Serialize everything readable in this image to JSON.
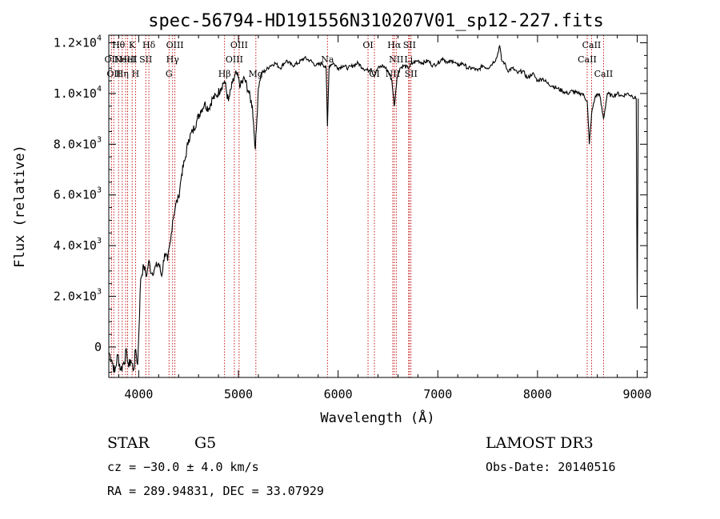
{
  "chart_data": {
    "type": "line",
    "title": "spec-56794-HD191556N310207V01_sp12-227.fits",
    "xlabel": "Wavelength (Å)",
    "ylabel": "Flux (relative)",
    "xlim": [
      3700,
      9100
    ],
    "ylim": [
      -1200,
      12300
    ],
    "x_ticks": [
      {
        "value": 4000,
        "label": "4000"
      },
      {
        "value": 5000,
        "label": "5000"
      },
      {
        "value": 6000,
        "label": "6000"
      },
      {
        "value": 7000,
        "label": "7000"
      },
      {
        "value": 8000,
        "label": "8000"
      },
      {
        "value": 9000,
        "label": "9000"
      }
    ],
    "y_ticks": [
      {
        "value": 0,
        "label": "0",
        "mant": "",
        "exp": ""
      },
      {
        "value": 2000,
        "label": "",
        "mant": "2.0×10",
        "exp": "3"
      },
      {
        "value": 4000,
        "label": "",
        "mant": "4.0×10",
        "exp": "3"
      },
      {
        "value": 6000,
        "label": "",
        "mant": "6.0×10",
        "exp": "3"
      },
      {
        "value": 8000,
        "label": "",
        "mant": "8.0×10",
        "exp": "3"
      },
      {
        "value": 10000,
        "label": "",
        "mant": "1.0×10",
        "exp": "4"
      },
      {
        "value": 12000,
        "label": "",
        "mant": "1.2×10",
        "exp": "4"
      }
    ],
    "series": [
      {
        "x": [
          3700,
          3730,
          3760,
          3790,
          3820,
          3850,
          3880,
          3900,
          3920,
          3950,
          3970,
          3990,
          4020,
          4050,
          4080,
          4100,
          4130,
          4160,
          4200,
          4230,
          4260,
          4290,
          4320,
          4340,
          4370,
          4400,
          4430,
          4470,
          4500,
          4540,
          4580,
          4620,
          4660,
          4700,
          4740,
          4780,
          4820,
          4860,
          4900,
          4940,
          4980,
          5020,
          5060,
          5100,
          5140,
          5170,
          5185,
          5200,
          5230,
          5270,
          5320,
          5370,
          5420,
          5480,
          5540,
          5600,
          5660,
          5720,
          5780,
          5840,
          5880,
          5893,
          5910,
          5950,
          6000,
          6050,
          6100,
          6150,
          6200,
          6250,
          6300,
          6330,
          6360,
          6400,
          6450,
          6500,
          6540,
          6563,
          6590,
          6620,
          6660,
          6700,
          6750,
          6800,
          6850,
          6900,
          6950,
          7000,
          7050,
          7100,
          7150,
          7200,
          7250,
          7300,
          7350,
          7400,
          7450,
          7500,
          7550,
          7590,
          7620,
          7640,
          7670,
          7700,
          7750,
          7800,
          7850,
          7900,
          7950,
          8000,
          8050,
          8100,
          8150,
          8200,
          8250,
          8300,
          8350,
          8400,
          8450,
          8498,
          8520,
          8542,
          8580,
          8620,
          8662,
          8700,
          8750,
          8800,
          8850,
          8900,
          8950,
          8990,
          9000,
          9010
        ],
        "y": [
          -200,
          -500,
          -1000,
          -300,
          -900,
          -600,
          -200,
          -800,
          -500,
          -900,
          -100,
          -700,
          2700,
          3200,
          2800,
          3400,
          2900,
          3100,
          3300,
          2800,
          3700,
          3400,
          4200,
          5000,
          5600,
          5900,
          6800,
          7500,
          8200,
          8500,
          8900,
          9300,
          9600,
          9400,
          9800,
          9900,
          10200,
          10500,
          9700,
          10400,
          10800,
          10300,
          10600,
          10100,
          9500,
          7800,
          9000,
          10200,
          10800,
          10900,
          11100,
          11200,
          11000,
          11300,
          11100,
          11200,
          11400,
          11300,
          11100,
          11200,
          11000,
          8700,
          11100,
          11200,
          11000,
          11100,
          11000,
          11100,
          11200,
          11000,
          10900,
          11000,
          10700,
          11000,
          11100,
          10900,
          10500,
          9500,
          10600,
          11000,
          11100,
          11000,
          11200,
          11300,
          11200,
          11300,
          11100,
          11200,
          11400,
          11200,
          11300,
          11100,
          11200,
          11000,
          11000,
          10900,
          11100,
          11000,
          11200,
          11400,
          11900,
          11300,
          11200,
          10900,
          11000,
          10800,
          10900,
          10600,
          10800,
          10500,
          10600,
          10400,
          10300,
          10200,
          10100,
          10000,
          10100,
          10000,
          10000,
          9700,
          8000,
          9200,
          9900,
          10000,
          9000,
          10000,
          9900,
          10000,
          9900,
          10000,
          9900,
          9800,
          1500,
          9800
        ]
      }
    ],
    "spectral_lines": [
      {
        "x": 3727,
        "label": "OII",
        "row": 1
      },
      {
        "x": 3750,
        "label": "OII",
        "row": 2
      },
      {
        "x": 3798,
        "label": "Hθ",
        "row": 0
      },
      {
        "x": 3835,
        "label": "Hη",
        "row": 2
      },
      {
        "x": 3869,
        "label": "NeIII",
        "row": 1
      },
      {
        "x": 3889,
        "label": "HeI",
        "row": 1
      },
      {
        "x": 3934,
        "label": "K",
        "row": 0
      },
      {
        "x": 3968,
        "label": "H",
        "row": 2
      },
      {
        "x": 4071,
        "label": "SII",
        "row": 1
      },
      {
        "x": 4102,
        "label": "Hδ",
        "row": 0
      },
      {
        "x": 4304,
        "label": "G",
        "row": 2
      },
      {
        "x": 4340,
        "label": "Hγ",
        "row": 1
      },
      {
        "x": 4363,
        "label": "OIII",
        "row": 0
      },
      {
        "x": 4861,
        "label": "Hβ",
        "row": 2
      },
      {
        "x": 4959,
        "label": "OIII",
        "row": 1
      },
      {
        "x": 5007,
        "label": "OIII",
        "row": 0
      },
      {
        "x": 5175,
        "label": "Mg",
        "row": 2
      },
      {
        "x": 5893,
        "label": "Na",
        "row": 1
      },
      {
        "x": 6300,
        "label": "OI",
        "row": 0
      },
      {
        "x": 6364,
        "label": "OI",
        "row": 2
      },
      {
        "x": 6548,
        "label": "NII",
        "row": 2
      },
      {
        "x": 6563,
        "label": "Hα",
        "row": 0
      },
      {
        "x": 6583,
        "label": "NII",
        "row": 1
      },
      {
        "x": 6707,
        "label": "Li",
        "row": 1
      },
      {
        "x": 6716,
        "label": "SII",
        "row": 0
      },
      {
        "x": 6731,
        "label": "SII",
        "row": 2
      },
      {
        "x": 8498,
        "label": "CaII",
        "row": 1
      },
      {
        "x": 8542,
        "label": "CaII",
        "row": 0
      },
      {
        "x": 8662,
        "label": "CaII",
        "row": 2
      }
    ],
    "grid": false,
    "legend": "none"
  },
  "info": {
    "object_class": "STAR",
    "subclass": "G5",
    "survey": "LAMOST DR3",
    "cz": "cz = −30.0 ± 4.0 km/s",
    "obs_date": "Obs-Date: 20140516",
    "coords": "RA = 289.94831, DEC =  33.07929"
  }
}
